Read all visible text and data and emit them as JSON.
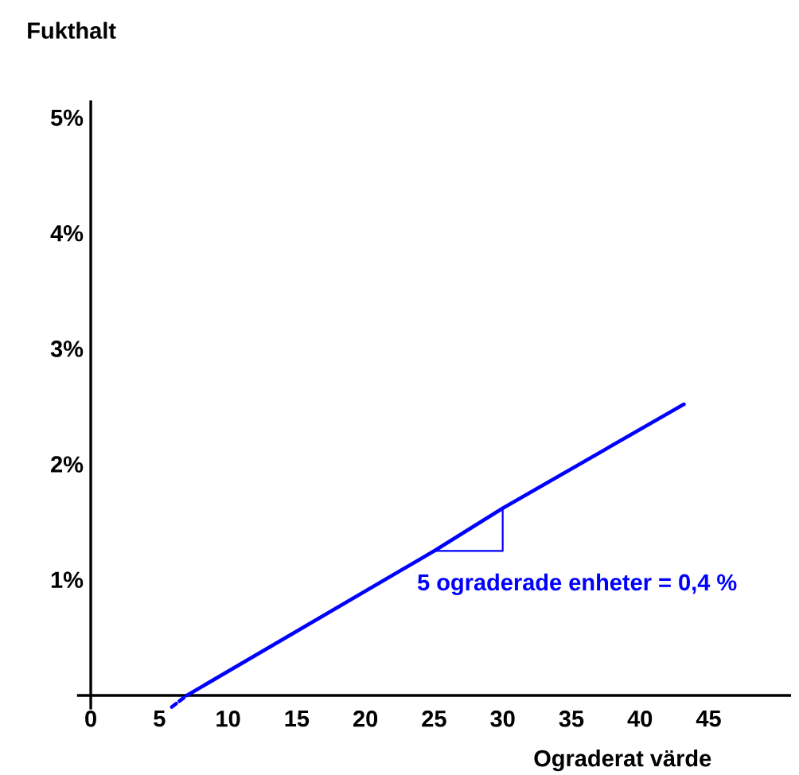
{
  "chart_data": {
    "type": "line",
    "xlabel": "Ograderat värde",
    "ylabel": "Fukthalt",
    "xlim": [
      -1,
      51
    ],
    "ylim": [
      -0.12,
      5.15
    ],
    "xticks": [
      0,
      5,
      10,
      15,
      20,
      25,
      30,
      35,
      40,
      45
    ],
    "yticks": [
      {
        "value": 1,
        "label": "1%"
      },
      {
        "value": 2,
        "label": "2%"
      },
      {
        "value": 3,
        "label": "3%"
      },
      {
        "value": 4,
        "label": "4%"
      },
      {
        "value": 5,
        "label": "5%"
      }
    ],
    "series": [
      {
        "color": "#0000ff",
        "line_style": "dashed",
        "x": [
          5.9,
          7
        ],
        "values": [
          -0.1,
          0
        ]
      },
      {
        "color": "#0000ff",
        "x": [
          7,
          25,
          30,
          43.2
        ],
        "values": [
          0,
          1.25,
          1.62,
          2.52
        ]
      },
      {
        "color": "#0000ff",
        "x": [
          25,
          30,
          30
        ],
        "values": [
          1.25,
          1.25,
          1.62
        ]
      }
    ],
    "annotations": [
      {
        "text": "5 ograderade enheter = 0,4 %",
        "x": 30,
        "y": 1.25
      }
    ],
    "grid": false,
    "legend": false,
    "marker": "none",
    "line_style": "solid"
  }
}
